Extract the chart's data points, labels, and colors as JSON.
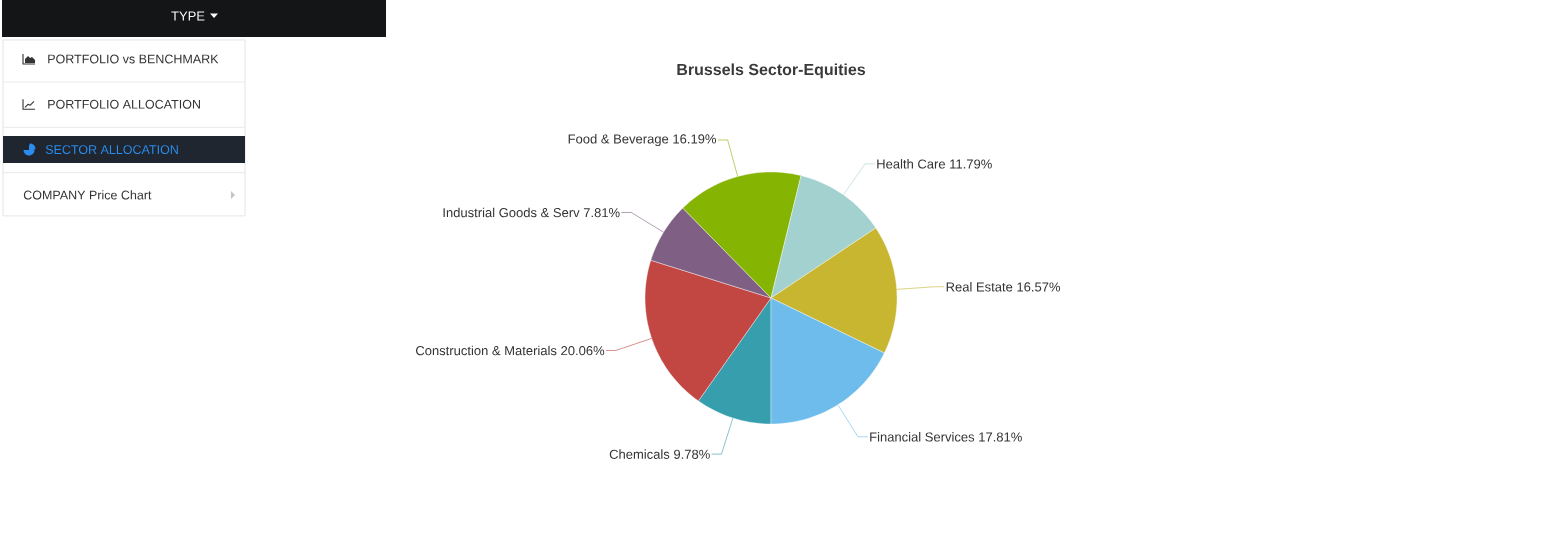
{
  "chart_data": [
    {
      "type": "other",
      "title": "TYPE",
      "annotations": [
        "PORTFOLIO vs BENCHMARK",
        "PORTFOLIO ALLOCATION",
        "SECTOR ALLOCATION",
        "COMPANY Price Chart"
      ]
    },
    {
      "type": "pie",
      "title": "Brussels Sector-Equities",
      "categories": [
        "Chemicals",
        "Construction & Materials",
        "Industrial Goods & Serv",
        "Food & Beverage",
        "Health Care",
        "Real Estate",
        "Financial Services"
      ],
      "values": [
        9.78,
        20.06,
        7.81,
        16.19,
        11.79,
        16.57,
        17.81
      ],
      "value_labels": [
        "9.78%",
        "20.06%",
        "7.81%",
        "16.19%",
        "11.79%",
        "16.57%",
        "17.81%"
      ],
      "colors": [
        "#369ead",
        "#c24642",
        "#7f6084",
        "#86b402",
        "#a2d1cf",
        "#c8b631",
        "#6dbceb"
      ]
    }
  ]
}
